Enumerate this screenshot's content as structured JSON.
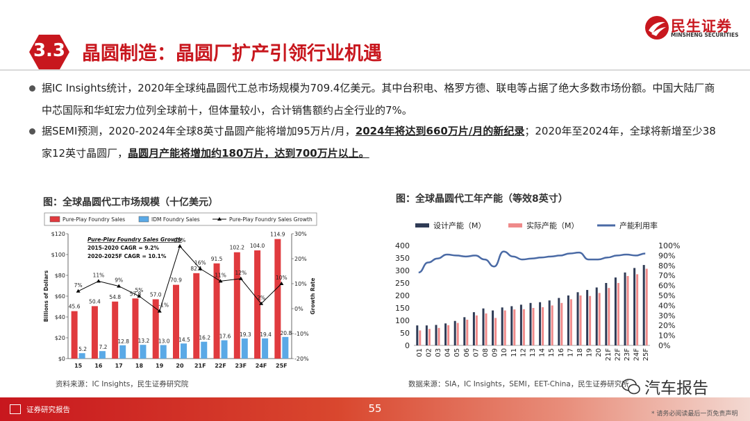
{
  "header": {
    "section_number": "3.3",
    "title": "晶圆制造：晶圆厂扩产引领行业机遇",
    "logo_cn": "民生证券",
    "logo_en": "MINSHENG SECURITIES"
  },
  "bullets": [
    {
      "text": "据IC Insights统计，2020年全球纯晶圆代工总市场规模为709.4亿美元。其中台积电、格罗方德、联电等占据了绝大多数市场份额。中国大陆厂商中芯国际和华虹宏力位列全球前十，但体量较小，合计销售额约占全行业的7%。"
    },
    {
      "part1": "据SEMI预测，2020-2024年全球8英寸晶圆产能将增加95万片/月，",
      "bold1": "2024年将达到660万片/月的新纪录",
      "part2": "；2020年至2024年，全球将新增至少38家12英寸晶圆厂，",
      "bold2": "晶圆月产能将增加约180万片，达到700万片以上。"
    }
  ],
  "left_chart": {
    "caption": "图：全球晶圆代工市场规模（十亿美元）",
    "source": "资料来源：IC Insights，民生证券研究院",
    "legend": [
      "Pure-Play Foundry Sales",
      "IDM Foundry Sales",
      "Pure-Play Foundry Sales Growth"
    ],
    "inset_title": "Pure-Play Foundry Sales Growth",
    "inset_lines": [
      "2015-2020 CAGR = 9.2%",
      "2020-2025F CAGR = 10.1%"
    ],
    "ylabel": "Billions of Dollars",
    "y2label": "Growth Rate",
    "colors": {
      "pure": "#e03a3e",
      "idm": "#5aa9e6",
      "growth": "#000000"
    }
  },
  "right_chart": {
    "caption": "图：全球晶圆代工年产能（等效8英寸）",
    "source": "数据来源：SIA，IC Insights，SEMI，EET-China，民生证券研究所",
    "legend": [
      "设计产能（M）",
      "实际产能（M）",
      "产能利用率"
    ],
    "colors": {
      "design": "#2f3b55",
      "actual": "#ef8a8a",
      "util": "#4a6aa5"
    }
  },
  "chart_data": [
    {
      "type": "bar",
      "title": "全球晶圆代工市场规模（十亿美元）",
      "categories": [
        "15",
        "16",
        "17",
        "18",
        "19",
        "20",
        "21F",
        "22F",
        "23F",
        "24F",
        "25F"
      ],
      "series": [
        {
          "name": "Pure-Play Foundry Sales",
          "values": [
            45.6,
            50.4,
            54.8,
            57.8,
            57.0,
            70.9,
            82.1,
            91.5,
            102.2,
            104.0,
            114.9
          ]
        },
        {
          "name": "IDM Foundry Sales",
          "values": [
            5.2,
            7.2,
            12.8,
            13.2,
            13.0,
            14.5,
            16.2,
            17.6,
            19.3,
            19.4,
            20.8
          ]
        },
        {
          "name": "Pure-Play Foundry Sales Growth",
          "values": [
            7,
            11,
            9,
            5,
            -1,
            25,
            16,
            11,
            12,
            2,
            10
          ],
          "unit": "%"
        }
      ],
      "bar_labels_pure": [
        "45.6",
        "50.4",
        "54.8",
        "57.8",
        "57.0",
        "70.9",
        "82.1",
        "91.5",
        "102.2",
        "104.0",
        "114.9"
      ],
      "bar_labels_idm": [
        "5.2",
        "7.2",
        "12.8",
        "13.2",
        "13.0",
        "14.5",
        "16.2",
        "17.6",
        "19.3",
        "19.4",
        "20.8"
      ],
      "growth_labels": [
        "7%",
        "11%",
        "9%",
        "5%",
        "-1%",
        "25%",
        "16%",
        "11%",
        "12%",
        "2%",
        "10%"
      ],
      "yticks": [
        "$0",
        "$10",
        "$20",
        "$30",
        "$40",
        "$50",
        "$60",
        "$70",
        "$80",
        "$90",
        "$100",
        "$110",
        "$120"
      ],
      "y2ticks": [
        "-20%",
        "-10%",
        "0%",
        "10%",
        "20%",
        "30%"
      ],
      "ylim": [
        0,
        120
      ],
      "y2lim": [
        -20,
        30
      ]
    },
    {
      "type": "bar",
      "title": "全球晶圆代工年产能（等效8英寸）",
      "categories": [
        "01",
        "02",
        "03",
        "04",
        "05",
        "06",
        "07",
        "08",
        "09",
        "10",
        "11",
        "12",
        "13",
        "14",
        "15",
        "16",
        "17",
        "18",
        "19",
        "20",
        "21F",
        "22F",
        "23F",
        "24F",
        "25F"
      ],
      "series": [
        {
          "name": "设计产能（M）",
          "values": [
            80,
            80,
            82,
            88,
            98,
            113,
            133,
            148,
            140,
            152,
            157,
            163,
            170,
            173,
            180,
            190,
            200,
            213,
            222,
            232,
            250,
            272,
            292,
            310,
            322
          ]
        },
        {
          "name": "实际产能（M）",
          "values": [
            60,
            66,
            70,
            81,
            90,
            103,
            120,
            128,
            110,
            140,
            144,
            145,
            150,
            153,
            160,
            170,
            185,
            200,
            198,
            210,
            230,
            250,
            278,
            285,
            307
          ]
        },
        {
          "name": "产能利用率",
          "values": [
            73,
            83,
            87,
            91,
            90,
            89,
            90,
            86,
            79,
            94,
            89,
            86,
            87,
            88,
            89,
            90,
            92,
            93,
            86,
            86,
            88,
            90,
            91,
            90,
            92
          ],
          "unit": "%"
        }
      ],
      "yticks": [
        "0",
        "50",
        "100",
        "150",
        "200",
        "250",
        "300",
        "350",
        "400"
      ],
      "y2ticks": [
        "0%",
        "10%",
        "20%",
        "30%",
        "40%",
        "50%",
        "60%",
        "70%",
        "80%",
        "90%",
        "100%"
      ],
      "ylim": [
        0,
        400
      ],
      "y2lim": [
        0,
        100
      ]
    }
  ],
  "footer": {
    "label": "证券研究报告",
    "page": "55",
    "disclaimer": "* 请务必阅读最后一页免责声明",
    "watermark": "汽车报告"
  }
}
